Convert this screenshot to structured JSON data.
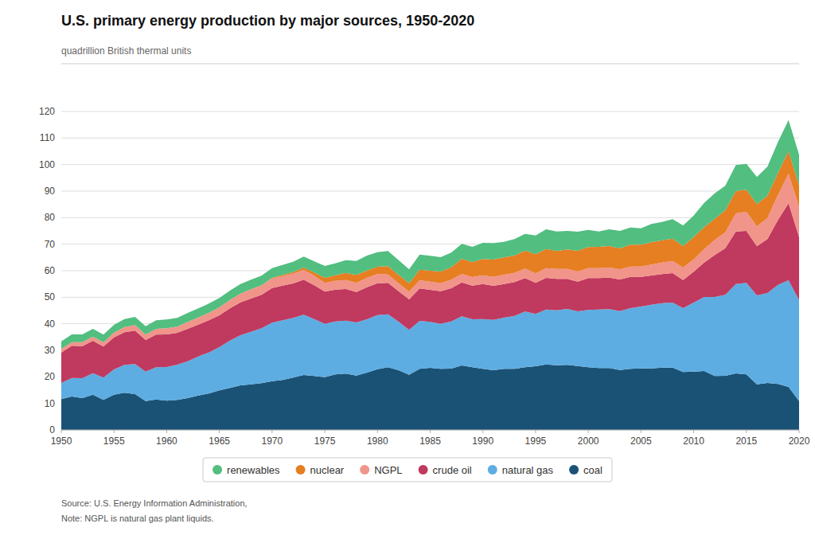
{
  "chart_data": {
    "type": "area",
    "stacked": true,
    "title": "U.S. primary energy production by major sources, 1950-2020",
    "ylabel": "quadrillion British thermal units",
    "source": "Source: U.S. Energy Information Administration, ",
    "note": "Note: NGPL is natural gas plant liquids.",
    "x": [
      1950,
      1951,
      1952,
      1953,
      1954,
      1955,
      1956,
      1957,
      1958,
      1959,
      1960,
      1961,
      1962,
      1963,
      1964,
      1965,
      1966,
      1967,
      1968,
      1969,
      1970,
      1971,
      1972,
      1973,
      1974,
      1975,
      1976,
      1977,
      1978,
      1979,
      1980,
      1981,
      1982,
      1983,
      1984,
      1985,
      1986,
      1987,
      1988,
      1989,
      1990,
      1991,
      1992,
      1993,
      1994,
      1995,
      1996,
      1997,
      1998,
      1999,
      2000,
      2001,
      2002,
      2003,
      2004,
      2005,
      2006,
      2007,
      2008,
      2009,
      2010,
      2011,
      2012,
      2013,
      2014,
      2015,
      2016,
      2017,
      2018,
      2019,
      2020
    ],
    "series": [
      {
        "name": "coal",
        "color": "#1a5276",
        "values": [
          11.6,
          12.6,
          12.0,
          13.3,
          11.3,
          13.3,
          14.0,
          13.5,
          10.9,
          11.5,
          11.0,
          11.3,
          12.0,
          13.0,
          13.7,
          14.9,
          15.8,
          16.8,
          17.2,
          17.6,
          18.4,
          18.8,
          19.7,
          20.7,
          20.3,
          19.9,
          20.9,
          21.2,
          20.5,
          21.6,
          22.9,
          23.6,
          22.5,
          20.8,
          23.0,
          23.4,
          23.0,
          23.1,
          24.3,
          23.6,
          23.0,
          22.5,
          23.0,
          23.0,
          23.6,
          24.0,
          24.7,
          24.4,
          24.5,
          24.1,
          23.6,
          23.3,
          23.3,
          22.6,
          23.0,
          23.2,
          23.2,
          23.5,
          23.5,
          21.8,
          22.0,
          22.2,
          20.3,
          20.4,
          21.3,
          20.9,
          17.2,
          17.7,
          17.3,
          16.2,
          10.9
        ]
      },
      {
        "name": "natural gas",
        "color": "#5dade2",
        "values": [
          6.1,
          7.0,
          7.5,
          8.1,
          8.4,
          9.5,
          10.5,
          11.3,
          11.1,
          12.1,
          12.7,
          13.3,
          13.9,
          14.7,
          15.5,
          16.3,
          17.9,
          18.9,
          19.8,
          20.7,
          22.0,
          22.5,
          22.5,
          22.7,
          21.5,
          20.1,
          20.0,
          20.0,
          20.0,
          20.1,
          20.4,
          20.0,
          18.3,
          16.9,
          18.1,
          17.3,
          17.0,
          17.8,
          18.5,
          18.1,
          18.8,
          19.0,
          19.3,
          20.0,
          21.0,
          19.7,
          20.7,
          20.7,
          21.1,
          20.6,
          21.6,
          22.1,
          22.2,
          22.2,
          22.9,
          23.3,
          24.0,
          24.3,
          24.5,
          24.1,
          26.0,
          27.9,
          29.8,
          30.5,
          33.7,
          34.5,
          33.5,
          33.9,
          37.4,
          40.2,
          38.0
        ]
      },
      {
        "name": "crude oil",
        "color": "#c0395e",
        "values": [
          11.5,
          12.1,
          12.1,
          12.2,
          11.7,
          12.1,
          12.3,
          12.6,
          11.9,
          12.3,
          12.3,
          12.0,
          12.2,
          12.0,
          12.1,
          12.0,
          12.1,
          12.4,
          12.5,
          12.6,
          13.1,
          13.1,
          13.0,
          13.2,
          12.7,
          12.1,
          12.0,
          11.9,
          11.5,
          12.1,
          12.0,
          11.8,
          11.5,
          11.5,
          12.2,
          12.1,
          12.3,
          12.5,
          12.8,
          12.7,
          13.2,
          12.8,
          12.7,
          12.7,
          12.6,
          11.7,
          11.9,
          11.8,
          11.3,
          11.2,
          12.0,
          11.8,
          11.9,
          11.9,
          11.8,
          11.2,
          11.0,
          10.9,
          11.1,
          10.6,
          11.6,
          13.0,
          15.8,
          17.6,
          19.8,
          19.6,
          18.5,
          20.3,
          24.4,
          29.0,
          23.8
        ]
      },
      {
        "name": "NGPL",
        "color": "#f1948a",
        "values": [
          1.3,
          1.4,
          1.5,
          1.6,
          1.6,
          1.8,
          2.0,
          2.1,
          2.0,
          2.2,
          2.3,
          2.3,
          2.5,
          2.6,
          2.7,
          2.9,
          3.1,
          3.2,
          3.4,
          3.5,
          3.6,
          3.6,
          3.7,
          3.7,
          3.6,
          3.3,
          3.3,
          3.4,
          3.4,
          3.5,
          3.5,
          3.2,
          3.0,
          2.9,
          3.1,
          3.1,
          3.0,
          3.2,
          3.2,
          3.2,
          3.3,
          3.4,
          3.5,
          3.5,
          3.6,
          3.6,
          3.7,
          3.8,
          3.8,
          3.8,
          3.8,
          3.8,
          3.8,
          3.8,
          3.9,
          3.9,
          4.1,
          4.4,
          4.6,
          4.7,
          4.7,
          5.1,
          5.7,
          6.0,
          6.8,
          7.2,
          7.5,
          8.0,
          9.5,
          11.1,
          11.3
        ]
      },
      {
        "name": "nuclear",
        "color": "#e67e22",
        "values": [
          0.0,
          0.0,
          0.0,
          0.0,
          0.0,
          0.0,
          0.0,
          0.0,
          0.0,
          0.0,
          0.0,
          0.0,
          0.1,
          0.1,
          0.1,
          0.1,
          0.1,
          0.1,
          0.1,
          0.1,
          0.2,
          0.4,
          0.6,
          0.9,
          1.2,
          1.9,
          2.1,
          2.7,
          3.0,
          2.8,
          2.7,
          3.1,
          3.1,
          3.2,
          4.0,
          4.1,
          4.4,
          4.7,
          5.7,
          5.6,
          6.1,
          6.5,
          6.5,
          6.5,
          6.8,
          7.2,
          7.2,
          6.7,
          7.3,
          7.8,
          7.9,
          8.0,
          8.1,
          7.9,
          8.2,
          8.2,
          8.4,
          8.4,
          8.4,
          8.1,
          8.4,
          8.2,
          8.0,
          8.3,
          8.4,
          8.3,
          8.4,
          8.4,
          8.3,
          8.5,
          8.2
        ]
      },
      {
        "name": "renewables",
        "color": "#52be80",
        "values": [
          2.9,
          2.9,
          2.9,
          2.9,
          2.9,
          2.9,
          3.0,
          3.1,
          3.2,
          3.2,
          3.3,
          3.3,
          3.4,
          3.4,
          3.5,
          3.5,
          3.5,
          3.6,
          3.6,
          3.6,
          3.7,
          3.8,
          3.9,
          4.1,
          4.2,
          4.5,
          4.5,
          4.8,
          5.3,
          5.6,
          5.5,
          5.7,
          5.6,
          5.2,
          5.7,
          5.6,
          5.4,
          5.5,
          5.6,
          5.8,
          6.1,
          6.2,
          5.9,
          6.2,
          6.3,
          7.1,
          7.4,
          7.4,
          7.0,
          7.2,
          6.5,
          5.8,
          6.3,
          6.6,
          6.5,
          6.2,
          6.9,
          6.9,
          7.3,
          7.7,
          8.1,
          9.2,
          9.6,
          9.2,
          9.8,
          9.8,
          10.2,
          10.9,
          11.6,
          11.8,
          11.5
        ]
      }
    ],
    "xlim": [
      1950,
      2020
    ],
    "xticks": [
      1950,
      1955,
      1960,
      1965,
      1970,
      1975,
      1980,
      1985,
      1990,
      1995,
      2000,
      2005,
      2010,
      2015,
      2020
    ],
    "ylim": [
      0,
      120
    ],
    "yticks": [
      0,
      10,
      20,
      30,
      40,
      50,
      60,
      70,
      80,
      90,
      100,
      110,
      120
    ],
    "grid": "y",
    "legend": "bottom"
  }
}
